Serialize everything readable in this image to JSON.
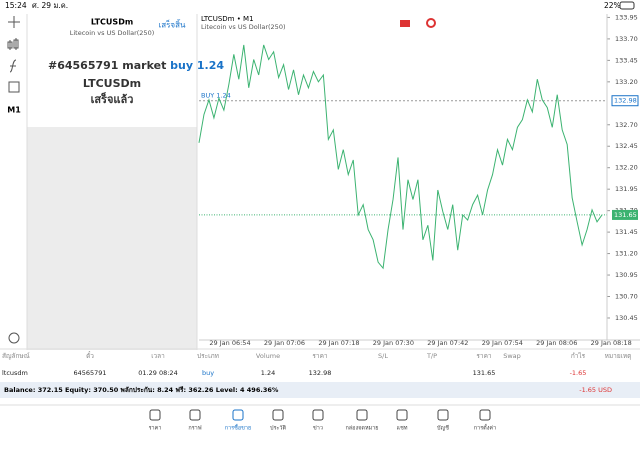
{
  "status_bar": {
    "time": "15:24",
    "date": "ศ. 29 ม.ค.",
    "battery": "22%"
  },
  "sidebar": {
    "timeframe": "M1"
  },
  "order_panel": {
    "symbol": "LTCUSDm",
    "description": "Litecoin vs US Dollar(250)",
    "done_button": "เสร็จสิ้น",
    "order_prefix": "#64565791 market",
    "order_action": "buy 1.24",
    "order_symbol": "LTCUSDm",
    "order_status": "เสร็จแล้ว"
  },
  "chart_data": {
    "type": "line",
    "title": "LTCUSDm • M1",
    "subtitle": "Litecoin vs US Dollar(250)",
    "order_line_label": "BUY 1.24",
    "order_price": {
      "value": 132.98,
      "label": "132.98"
    },
    "current_price": {
      "value": 131.65,
      "label": "131.65"
    },
    "ylim": [
      130.31,
      133.99
    ],
    "yticks": [
      {
        "value": 133.95,
        "label": "133.95"
      },
      {
        "value": 133.7,
        "label": "133.70"
      },
      {
        "value": 133.45,
        "label": "133.45"
      },
      {
        "value": 133.2,
        "label": "133.20"
      },
      {
        "value": 132.7,
        "label": "132.70"
      },
      {
        "value": 132.45,
        "label": "132.45"
      },
      {
        "value": 132.2,
        "label": "132.20"
      },
      {
        "value": 131.95,
        "label": "131.95"
      },
      {
        "value": 131.7,
        "label": "131.70"
      },
      {
        "value": 131.45,
        "label": "131.45"
      },
      {
        "value": 131.2,
        "label": "131.20"
      },
      {
        "value": 130.95,
        "label": "130.95"
      },
      {
        "value": 130.7,
        "label": "130.70"
      },
      {
        "value": 130.45,
        "label": "130.45"
      }
    ],
    "xticks": [
      "29 Jan 06:54",
      "29 Jan 07:06",
      "29 Jan 07:18",
      "29 Jan 07:30",
      "29 Jan 07:42",
      "29 Jan 07:54",
      "29 Jan 08:06",
      "29 Jan 08:18"
    ],
    "color": "#3cb371",
    "values": [
      132.49,
      132.82,
      132.99,
      132.78,
      133.01,
      132.87,
      133.17,
      133.52,
      133.23,
      133.63,
      133.13,
      133.46,
      133.28,
      133.63,
      133.46,
      133.55,
      133.25,
      133.4,
      133.11,
      133.34,
      133.05,
      133.28,
      133.13,
      133.32,
      133.2,
      133.28,
      132.53,
      132.64,
      132.18,
      132.41,
      132.12,
      132.29,
      131.65,
      131.77,
      131.48,
      131.36,
      131.1,
      131.03,
      131.48,
      131.83,
      132.32,
      131.48,
      132.06,
      131.83,
      132.06,
      131.36,
      131.53,
      131.12,
      131.94,
      131.69,
      131.48,
      131.77,
      131.24,
      131.65,
      131.59,
      131.77,
      131.88,
      131.65,
      131.94,
      132.12,
      132.41,
      132.23,
      132.53,
      132.41,
      132.67,
      132.76,
      132.99,
      132.85,
      133.23,
      132.99,
      132.9,
      132.67,
      133.05,
      132.64,
      132.47,
      131.85,
      131.57,
      131.3,
      131.48,
      131.71,
      131.57,
      131.65
    ]
  },
  "table": {
    "headers": [
      "สัญลักษณ์",
      "ตั๋ว",
      "เวลา",
      "ประเภท",
      "Volume",
      "ราคา",
      "S/L",
      "T/P",
      "ราคา",
      "Swap",
      "กำไร",
      "หมายเหตุ"
    ],
    "row": [
      "ltcusdm",
      "64565791",
      "01.29 08:24",
      "buy",
      "1.24",
      "132.98",
      "",
      "",
      "131.65",
      "",
      "-1.65",
      ""
    ],
    "balance": "Balance: 372.15 Equity: 370.50 พลักประกัน: 8.24 ฟรี: 362.26 Level: 4 496.36%",
    "total": "-1.65  USD"
  },
  "tabs": [
    "ราคา",
    "กราฟ",
    "การซื้อขาย",
    "ประวัติ",
    "ข่าว",
    "กล่องจดหมาย",
    "แชท",
    "บัญชี",
    "การตั้งค่า"
  ]
}
